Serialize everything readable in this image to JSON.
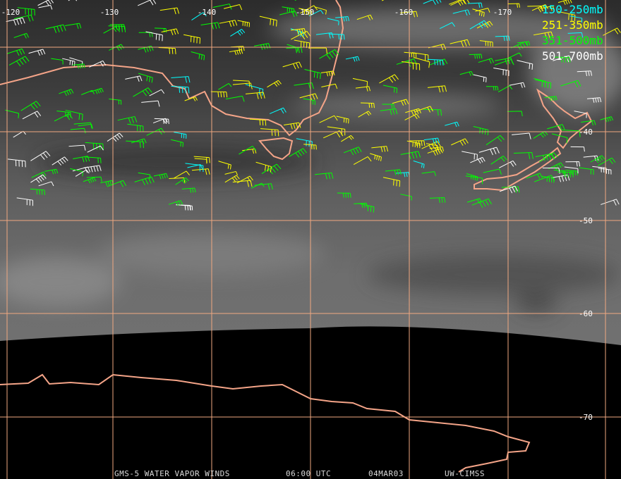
{
  "map": {
    "longitude_labels": [
      "-120",
      "-130",
      "-140",
      "-150",
      "-160",
      "-170"
    ],
    "latitude_labels": [
      "-40",
      "-50",
      "-60",
      "-70"
    ],
    "grid_color": "#f0a880",
    "coast_color": "#f4a488"
  },
  "legend": [
    {
      "label": "150-250mb",
      "color": "#00ffff"
    },
    {
      "label": "251-350mb",
      "color": "#ffff00"
    },
    {
      "label": "351-500mb",
      "color": "#00ff00"
    },
    {
      "label": "501-700mb",
      "color": "#ffffff"
    }
  ],
  "footer": {
    "title": "GMS-5 WATER VAPOR WINDS",
    "time": "06:00 UTC",
    "date": "04MAR03",
    "source": "UW-CIMSS"
  }
}
